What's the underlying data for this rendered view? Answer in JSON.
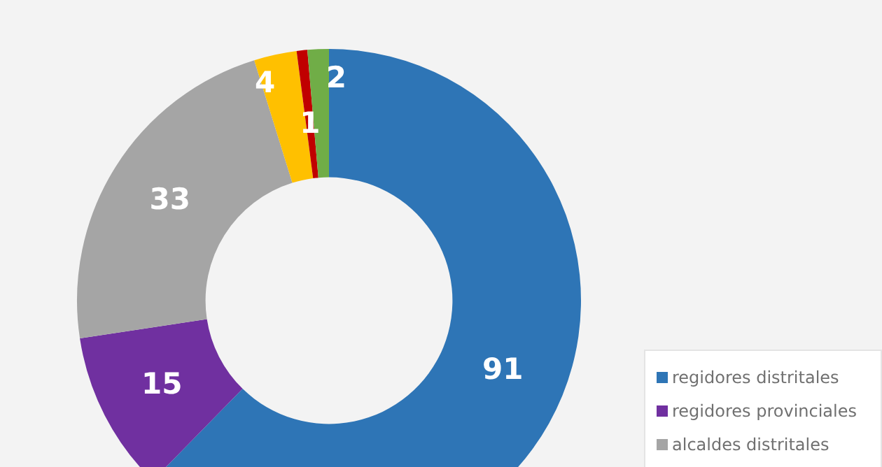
{
  "chart_data": {
    "type": "donut",
    "categories": [
      "regidores distritales",
      "regidores provinciales",
      "alcaldes distritales",
      null,
      null,
      null
    ],
    "values": [
      91,
      15,
      33,
      4,
      1,
      2
    ],
    "colors": [
      "#2e75b6",
      "#7030a0",
      "#a5a5a5",
      "#ffc000",
      "#c00000",
      "#70ad47"
    ],
    "data_labels": true,
    "legend": "bottom right"
  }
}
